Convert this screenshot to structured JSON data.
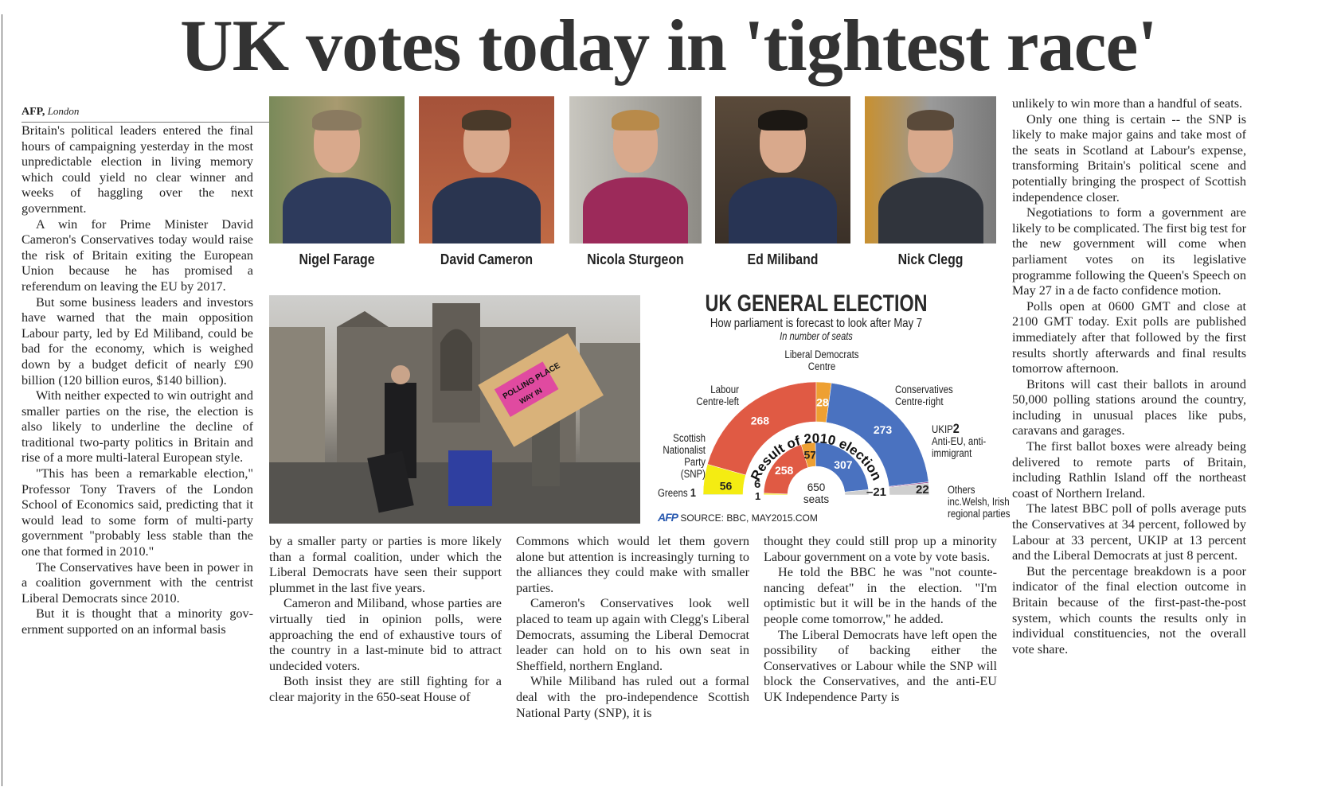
{
  "headline": "UK votes today in 'tightest race'",
  "byline": {
    "agency": "AFP,",
    "place": "London"
  },
  "leaders": [
    {
      "name": "Nigel Farage"
    },
    {
      "name": "David Cameron"
    },
    {
      "name": "Nicola Sturgeon"
    },
    {
      "name": "Ed Miliband"
    },
    {
      "name": "Nick Clegg"
    }
  ],
  "photo": {
    "sign_line1": "POLLING PLACE",
    "sign_line2": "WAY IN"
  },
  "columns": [
    [
      "Britain's political leaders entered the final hours of campaigning yesterday in the most unpredictable election in living memory which could yield no clear winner and weeks of haggling over the next government.",
      "A win for Prime Minister David Cameron's Conservatives today would raise the risk of Britain exiting the European Union because he has prom­ised a referendum on leaving the EU by 2017.",
      "But some business leaders and inves­tors have warned that the main opposi­tion Labour party, led by Ed Miliband, could be bad for the economy, which is weighed down by a budget deficit of nearly £90 billion (120 billion euros, $140 billion).",
      "With neither expected to win outright and smaller parties on the rise, the elec­tion is also likely to underline the decline of traditional two-party politics in Britain and rise of a more multi-lateral European style.",
      "\"This has been a remarkable elec­tion,\" Professor Tony Travers of the London School of Economics said, predicting that it would lead to some form of multi-party government \"proba­bly less stable than the one that formed in 2010.\"",
      "The Conservatives have been in power in a coalition government with the centrist Liberal Democrats since 2010.",
      "But it is thought that a minority gov­ernment supported on an informal basis"
    ],
    [
      "by a smaller party or parties is more likely than a formal coalition, under which the Liberal Democrats have seen their support plummet in the last five years.",
      "Cameron and Miliband, whose par­ties are virtually tied in opinion polls, were approaching the end of exhaustive tours of the country in a last-minute bid to attract undecided voters.",
      "Both insist they are still fighting for a clear majority in the 650-seat House of"
    ],
    [
      "Commons which would let them govern alone but attention is increasingly turn­ing to the alliances they could make with smaller parties.",
      "Cameron's Conservatives look well placed to team up again with Clegg's Liberal Democrats, assuming the Liberal Democrat leader can hold on to his own seat in Sheffield, northern England.",
      "While Miliband has ruled out a for­mal deal with the pro-independence Scottish National Party (SNP), it is"
    ],
    [
      "thought they could still prop up a minority Labour government on a vote by vote basis.",
      "He told the BBC he was \"not counte­nancing defeat\" in the election. \"I'm optimistic but it will be in the hands of the people come tomorrow,\" he added.",
      "The Liberal Democrats have left open the possibility of backing either the Conservatives or Labour while the SNP will block the Conservatives, and the anti-EU UK Independence Party is"
    ],
    [
      "unlikely to win more than a handful of seats.",
      "Only one thing is certain -- the SNP is likely to make major gains and take most of the seats in Scotland at Labour's expense, transforming Britain's political scene and potentially bringing the prospect of Scottish inde­pendence closer.",
      "Negotiations to form a government are likely to be complicated. The first big test for the new government will come when parliament votes on its legislative programme following the Queen's Speech on May 27 in a de facto confi­dence motion.",
      "Polls open at 0600 GMT and close at 2100 GMT today. Exit polls are pub­lished immediately after that followed by the first results shortly afterwards and final results tomorrow afternoon.",
      "Britons will cast their ballots in around 50,000 polling stations around the country, including in unusual places like pubs, caravans and garages.",
      "The first ballot boxes were already being delivered to remote parts of Britain, including Rathlin Island off the northeast coast of Northern Ireland.",
      "The latest BBC poll of polls average puts the Conservatives at 34 percent, followed by Labour at 33 percent, UKIP at 13 percent and the Liberal Democrats at just 8 percent.",
      "But the percentage breakdown is a poor indicator of the final election out­come in Britain because of the first-past-the-post system, which counts the results only in individual constituencies, not the overall vote share."
    ]
  ],
  "chart_data": {
    "type": "pie",
    "title": "UK GENERAL ELECTION",
    "subtitle": "How parliament is forecast to look after May 7",
    "unit_note": "In number of seats",
    "inner_title": "Result of 2010 election",
    "total": {
      "value": "650",
      "unit": "seats"
    },
    "source_logo": "AFP",
    "source": "SOURCE: BBC, MAY2015.COM",
    "parties": [
      {
        "key": "greens",
        "label": "Greens",
        "desc": "",
        "forecast": 1,
        "result_2010": 1,
        "color": "#5aaa3a"
      },
      {
        "key": "snp",
        "label": "Scottish Nationalist Party (SNP)",
        "desc": "",
        "forecast": 56,
        "result_2010": 6,
        "color": "#f4ec12"
      },
      {
        "key": "labour",
        "label": "Labour",
        "desc": "Centre-left",
        "forecast": 268,
        "result_2010": 258,
        "color": "#e05a44"
      },
      {
        "key": "libdem",
        "label": "Liberal Democrats",
        "desc": "Centre",
        "forecast": 28,
        "result_2010": 57,
        "color": "#eea032"
      },
      {
        "key": "con",
        "label": "Conservatives",
        "desc": "Centre-right",
        "forecast": 273,
        "result_2010": 307,
        "color": "#4a72c0"
      },
      {
        "key": "ukip",
        "label": "UKIP",
        "desc": "Anti-EU, anti-immigrant",
        "forecast": 2,
        "result_2010": 0,
        "color": "#8a2a7a"
      },
      {
        "key": "others",
        "label": "Others",
        "desc": "inc.Welsh, Irish regional parties",
        "forecast": 22,
        "result_2010": 21,
        "color": "#cfcfcf"
      }
    ]
  }
}
